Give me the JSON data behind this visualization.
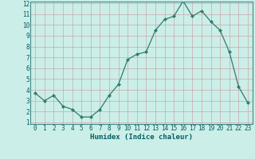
{
  "x": [
    0,
    1,
    2,
    3,
    4,
    5,
    6,
    7,
    8,
    9,
    10,
    11,
    12,
    13,
    14,
    15,
    16,
    17,
    18,
    19,
    20,
    21,
    22,
    23
  ],
  "y": [
    3.7,
    3.0,
    3.5,
    2.5,
    2.2,
    1.5,
    1.5,
    2.2,
    3.5,
    4.5,
    6.8,
    7.3,
    7.5,
    9.5,
    10.5,
    10.8,
    12.2,
    10.8,
    11.3,
    10.3,
    9.5,
    7.5,
    4.3,
    2.8
  ],
  "line_color": "#2d7d6e",
  "marker": "D",
  "marker_size": 2.0,
  "xlabel": "Humidex (Indice chaleur)",
  "ylim": [
    1,
    12
  ],
  "xlim": [
    -0.5,
    23.5
  ],
  "bg_color": "#cceee8",
  "grid_color": "#c8a8a8",
  "yticks": [
    1,
    2,
    3,
    4,
    5,
    6,
    7,
    8,
    9,
    10,
    11,
    12
  ],
  "xtick_labels": [
    "0",
    "1",
    "2",
    "3",
    "4",
    "5",
    "6",
    "7",
    "8",
    "9",
    "10",
    "11",
    "12",
    "13",
    "14",
    "15",
    "16",
    "17",
    "18",
    "19",
    "20",
    "21",
    "22",
    "23"
  ],
  "tick_fontsize": 5.5,
  "xlabel_fontsize": 6.5
}
